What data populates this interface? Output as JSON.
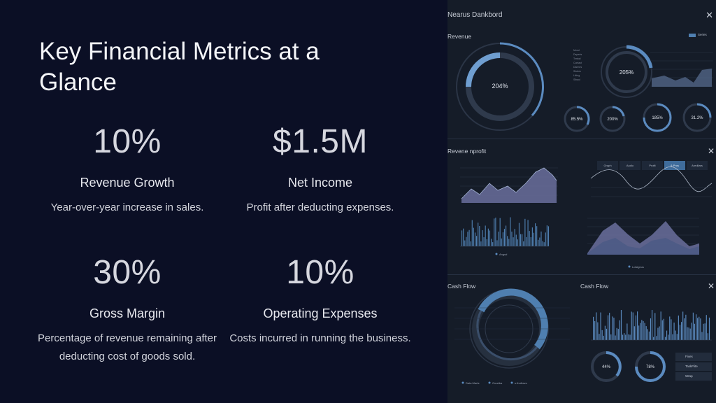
{
  "slide": {
    "title": "Key Financial Metrics at a Glance",
    "metrics": [
      {
        "value": "10%",
        "label": "Revenue Growth",
        "desc": "Year-over-year increase in sales."
      },
      {
        "value": "$1.5M",
        "label": "Net Income",
        "desc": "Profit after deducting expenses."
      },
      {
        "value": "30%",
        "label": "Gross Margin",
        "desc": "Percentage of revenue remaining after deducting cost of goods sold."
      },
      {
        "value": "10%",
        "label": "Operating Expenses",
        "desc": "Costs incurred in running the business."
      }
    ]
  },
  "dashboard": {
    "title": "Nearus Dankbord",
    "close": "✕",
    "panels": {
      "revenue": {
        "title": "Revenue",
        "big_ring": "204%",
        "ring2": "205%",
        "small_rings": [
          "85.5%",
          "200%",
          "185%",
          "31.2%"
        ],
        "legend": "Series"
      },
      "revenue_profit": {
        "title": "Revene nprofit",
        "tabs": [
          "Graph",
          "Audio",
          "Profit",
          "& Pros",
          "Aredilars"
        ],
        "legend1": "Angsd",
        "legend2": "Lolsignus"
      },
      "cash_flow_left": {
        "title": "Cash Flow",
        "legend": [
          "Data Marts",
          "Goodba",
          "s.thollows"
        ]
      },
      "cash_flow_right": {
        "title": "Cash Flow",
        "rings": [
          "44%",
          "78%"
        ],
        "menu": [
          "Fixes",
          "TaskFlite",
          "Wrap"
        ]
      }
    },
    "colors": {
      "accent": "#4f7fb0",
      "light": "#8ab4dc",
      "area": "#6a6f9c"
    }
  }
}
